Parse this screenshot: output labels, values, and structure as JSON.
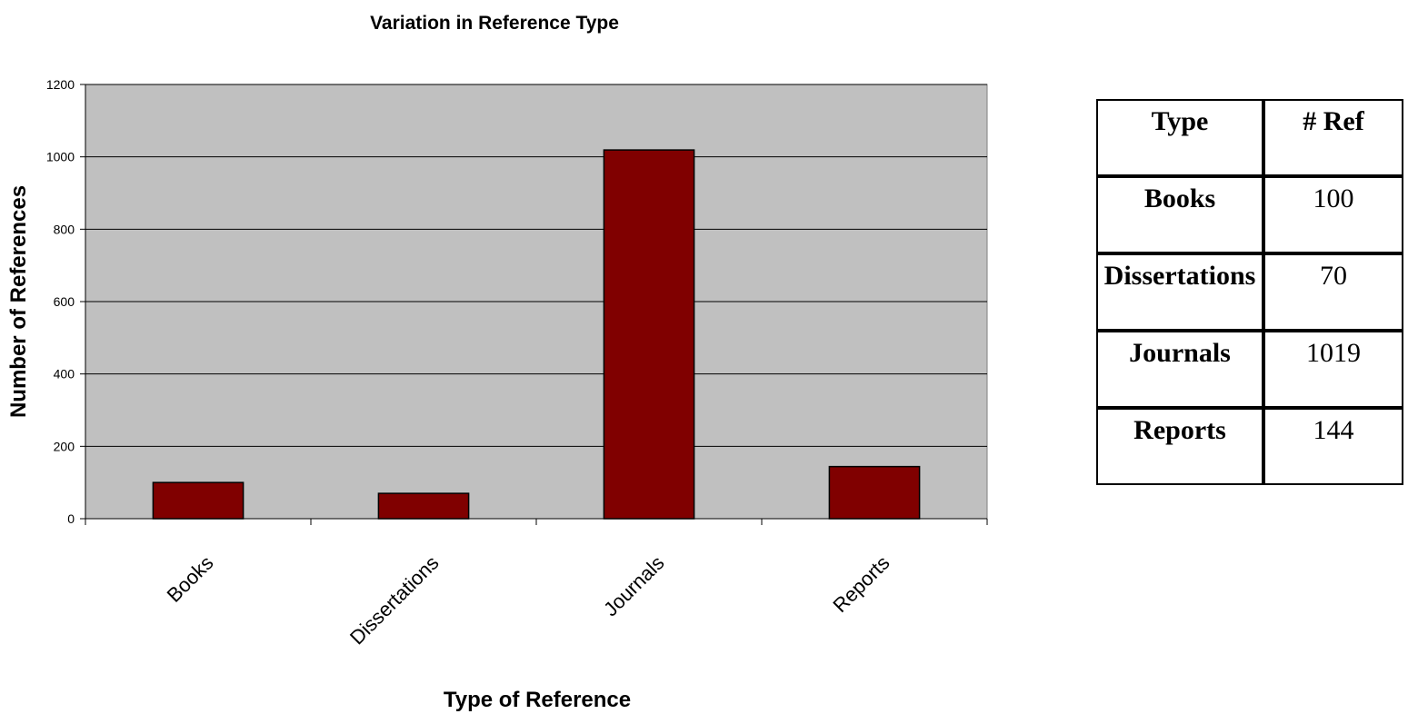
{
  "chart_data": {
    "type": "bar",
    "title": "Variation in Reference Type",
    "xlabel": "Type of Reference",
    "ylabel": "Number of References",
    "categories": [
      "Books",
      "Dissertations",
      "Journals",
      "Reports"
    ],
    "values": [
      100,
      70,
      1019,
      144
    ],
    "ylim": [
      0,
      1200
    ],
    "yticks": [
      "0",
      "200",
      "400",
      "600",
      "800",
      "1000",
      "1200"
    ],
    "grid": true,
    "colors": {
      "bar": "#800000",
      "plot_bg": "#c0c0c0"
    }
  },
  "table": {
    "headers": [
      "Type",
      "# Ref"
    ],
    "rows": [
      {
        "type": "Books",
        "ref": "100"
      },
      {
        "type": "Dissertations",
        "ref": "70"
      },
      {
        "type": "Journals",
        "ref": "1019"
      },
      {
        "type": "Reports",
        "ref": "144"
      }
    ]
  }
}
